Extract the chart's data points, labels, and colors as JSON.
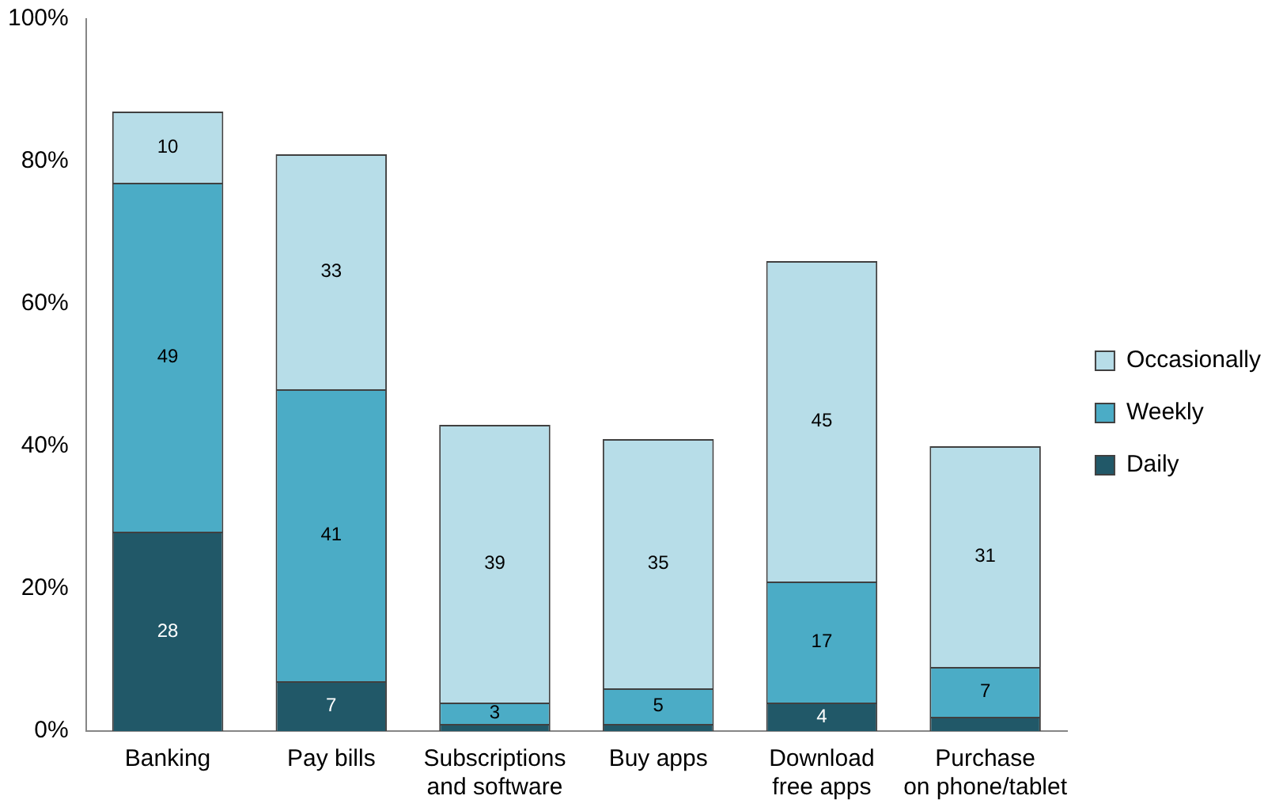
{
  "chart_data": {
    "type": "bar",
    "stacked": true,
    "categories": [
      "Banking",
      "Pay bills",
      "Subscriptions and software",
      "Buy apps",
      "Download free apps",
      "Purchase on phone/tablet"
    ],
    "series": [
      {
        "name": "Daily",
        "color": "#215868",
        "values": [
          28,
          7,
          1,
          1,
          4,
          2
        ],
        "value_labels": [
          "28",
          "7",
          null,
          null,
          "4",
          null
        ]
      },
      {
        "name": "Weekly",
        "color": "#4bacc6",
        "values": [
          49,
          41,
          3,
          5,
          17,
          7
        ],
        "value_labels": [
          "49",
          "41",
          "3",
          "5",
          "17",
          "7"
        ]
      },
      {
        "name": "Occasionally",
        "color": "#b7dde8",
        "values": [
          10,
          33,
          39,
          35,
          45,
          31
        ],
        "value_labels": [
          "10",
          "33",
          "39",
          "35",
          "45",
          "31"
        ]
      }
    ],
    "ylim": [
      0,
      100
    ],
    "yticks": [
      {
        "value": 0,
        "label": "0%"
      },
      {
        "value": 20,
        "label": "20%"
      },
      {
        "value": 40,
        "label": "40%"
      },
      {
        "value": 60,
        "label": "60%"
      },
      {
        "value": 80,
        "label": "80%"
      },
      {
        "value": 100,
        "label": "100%"
      }
    ],
    "grid": false,
    "legend": "right"
  }
}
